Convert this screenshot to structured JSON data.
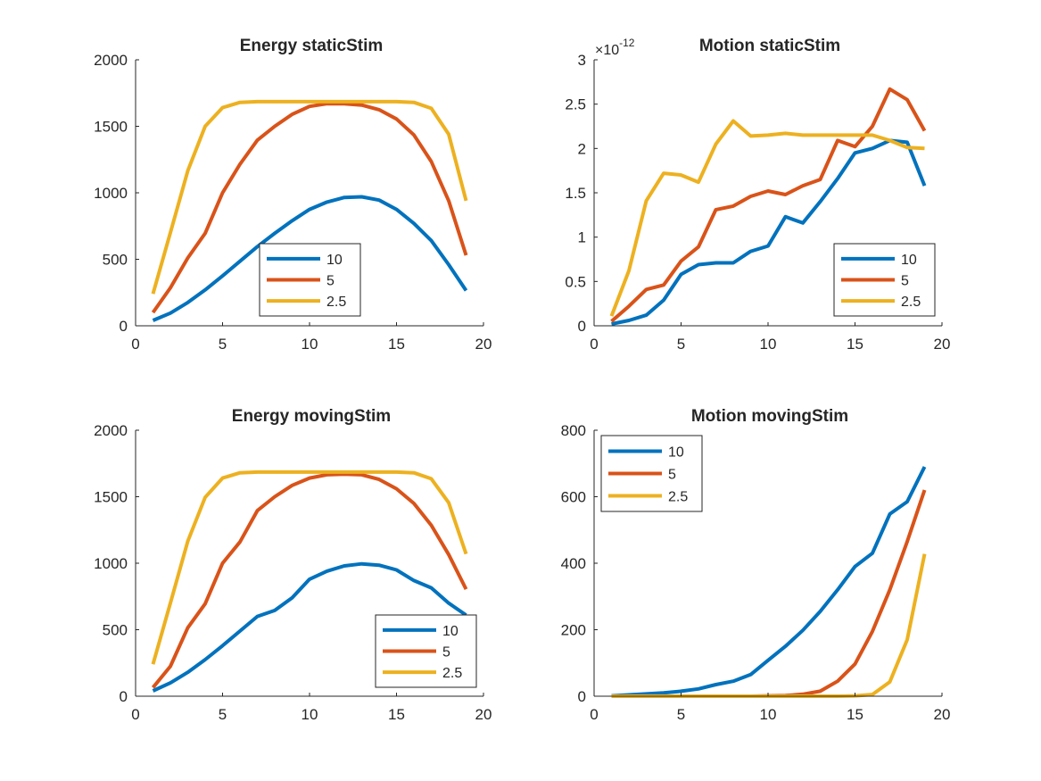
{
  "figure": {
    "background": "#ffffff",
    "axis_color": "#262626"
  },
  "chart_data": [
    {
      "type": "line",
      "title": "Energy staticStim",
      "xlabel": "",
      "ylabel": "",
      "xlim": [
        0,
        20
      ],
      "ylim": [
        0,
        2000
      ],
      "xticks": [
        0,
        5,
        10,
        15,
        20
      ],
      "yticks": [
        0,
        500,
        1000,
        1500,
        2000
      ],
      "ytick_labels": [
        "0",
        "500",
        "1000",
        "1500",
        "2000"
      ],
      "legend_position": "lower-middle",
      "x": [
        1,
        2,
        3,
        4,
        5,
        6,
        7,
        8,
        9,
        10,
        11,
        12,
        13,
        14,
        15,
        16,
        17,
        18,
        19
      ],
      "series": [
        {
          "name": "10",
          "color": "#0072BD",
          "values": [
            40,
            95,
            175,
            270,
            375,
            485,
            595,
            695,
            790,
            875,
            930,
            965,
            970,
            945,
            875,
            770,
            640,
            460,
            265
          ]
        },
        {
          "name": "5",
          "color": "#D95319",
          "values": [
            100,
            285,
            510,
            695,
            1000,
            1215,
            1395,
            1500,
            1590,
            1650,
            1670,
            1670,
            1660,
            1625,
            1555,
            1435,
            1235,
            940,
            530
          ]
        },
        {
          "name": "2.5",
          "color": "#EDB120",
          "values": [
            240,
            700,
            1165,
            1500,
            1640,
            1680,
            1685,
            1685,
            1685,
            1685,
            1685,
            1685,
            1685,
            1685,
            1685,
            1680,
            1635,
            1440,
            940
          ]
        }
      ]
    },
    {
      "type": "line",
      "title": "Motion staticStim",
      "xlabel": "",
      "ylabel": "",
      "xlim": [
        0,
        20
      ],
      "ylim": [
        0,
        3
      ],
      "y_exponent": {
        "base": "10",
        "power": "-12"
      },
      "xticks": [
        0,
        5,
        10,
        15,
        20
      ],
      "yticks": [
        0,
        0.5,
        1,
        1.5,
        2,
        2.5,
        3
      ],
      "ytick_labels": [
        "0",
        "0.5",
        "1",
        "1.5",
        "2",
        "2.5",
        "3"
      ],
      "legend_position": "lower-right",
      "x": [
        1,
        2,
        3,
        4,
        5,
        6,
        7,
        8,
        9,
        10,
        11,
        12,
        13,
        14,
        15,
        16,
        17,
        18,
        19
      ],
      "series": [
        {
          "name": "10",
          "color": "#0072BD",
          "values": [
            0.02,
            0.06,
            0.12,
            0.29,
            0.58,
            0.69,
            0.71,
            0.71,
            0.84,
            0.9,
            1.23,
            1.16,
            1.4,
            1.66,
            1.95,
            2.0,
            2.09,
            2.07,
            1.58
          ]
        },
        {
          "name": "5",
          "color": "#D95319",
          "values": [
            0.05,
            0.22,
            0.41,
            0.46,
            0.73,
            0.89,
            1.31,
            1.35,
            1.46,
            1.52,
            1.48,
            1.58,
            1.65,
            2.09,
            2.02,
            2.25,
            2.67,
            2.55,
            2.2
          ]
        },
        {
          "name": "2.5",
          "color": "#EDB120",
          "values": [
            0.11,
            0.62,
            1.41,
            1.72,
            1.7,
            1.62,
            2.05,
            2.31,
            2.14,
            2.15,
            2.17,
            2.15,
            2.15,
            2.15,
            2.15,
            2.15,
            2.09,
            2.01,
            2.0
          ]
        }
      ]
    },
    {
      "type": "line",
      "title": "Energy movingStim",
      "xlabel": "",
      "ylabel": "",
      "xlim": [
        0,
        20
      ],
      "ylim": [
        0,
        2000
      ],
      "xticks": [
        0,
        5,
        10,
        15,
        20
      ],
      "yticks": [
        0,
        500,
        1000,
        1500,
        2000
      ],
      "ytick_labels": [
        "0",
        "500",
        "1000",
        "1500",
        "2000"
      ],
      "legend_position": "lower-right",
      "x": [
        1,
        2,
        3,
        4,
        5,
        6,
        7,
        8,
        9,
        10,
        11,
        12,
        13,
        14,
        15,
        16,
        17,
        18,
        19
      ],
      "series": [
        {
          "name": "10",
          "color": "#0072BD",
          "values": [
            40,
            100,
            180,
            275,
            380,
            490,
            600,
            645,
            740,
            880,
            940,
            980,
            995,
            985,
            950,
            870,
            815,
            700,
            610
          ]
        },
        {
          "name": "5",
          "color": "#D95319",
          "values": [
            65,
            225,
            515,
            695,
            1000,
            1160,
            1395,
            1500,
            1585,
            1640,
            1665,
            1670,
            1665,
            1630,
            1560,
            1450,
            1285,
            1065,
            805
          ]
        },
        {
          "name": "2.5",
          "color": "#EDB120",
          "values": [
            240,
            700,
            1165,
            1495,
            1640,
            1680,
            1685,
            1685,
            1685,
            1685,
            1685,
            1685,
            1685,
            1685,
            1685,
            1680,
            1635,
            1455,
            1070
          ]
        }
      ]
    },
    {
      "type": "line",
      "title": "Motion movingStim",
      "xlabel": "",
      "ylabel": "",
      "xlim": [
        0,
        20
      ],
      "ylim": [
        0,
        800
      ],
      "xticks": [
        0,
        5,
        10,
        15,
        20
      ],
      "yticks": [
        0,
        200,
        400,
        600,
        800
      ],
      "ytick_labels": [
        "0",
        "200",
        "400",
        "600",
        "800"
      ],
      "legend_position": "top-left",
      "x": [
        1,
        2,
        3,
        4,
        5,
        6,
        7,
        8,
        9,
        10,
        11,
        12,
        13,
        14,
        15,
        16,
        17,
        18,
        19
      ],
      "series": [
        {
          "name": "10",
          "color": "#0072BD",
          "values": [
            1,
            4,
            7,
            10,
            15,
            22,
            35,
            45,
            65,
            108,
            150,
            198,
            255,
            320,
            390,
            430,
            548,
            585,
            690
          ]
        },
        {
          "name": "5",
          "color": "#D95319",
          "values": [
            0,
            0,
            0,
            0,
            0,
            0,
            0,
            0,
            0,
            1,
            2,
            6,
            15,
            45,
            97,
            195,
            320,
            465,
            620
          ]
        },
        {
          "name": "2.5",
          "color": "#EDB120",
          "values": [
            0,
            0,
            0,
            0,
            0,
            0,
            0,
            0,
            0,
            0,
            0,
            0,
            0,
            0,
            1,
            5,
            43,
            170,
            428
          ]
        }
      ]
    }
  ]
}
